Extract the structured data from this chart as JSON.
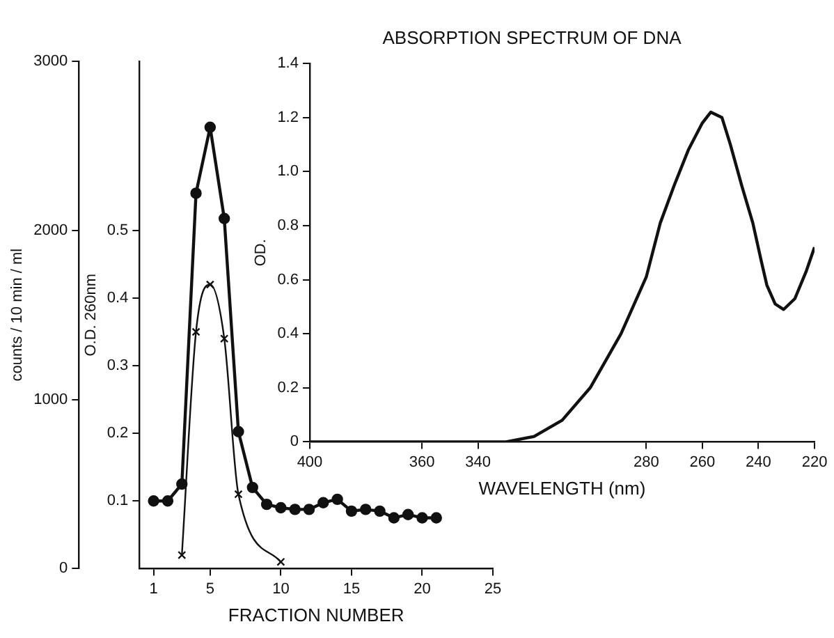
{
  "chart_data": [
    {
      "type": "line",
      "xlabel": "FRACTION NUMBER",
      "ylabel": "counts / 10 min / ml",
      "y2label": "O.D. 260nm",
      "xlim": [
        0,
        25
      ],
      "xticks": [
        1,
        5,
        10,
        15,
        20,
        25
      ],
      "ylim": [
        0,
        3000
      ],
      "yticks": [
        0,
        1000,
        2000,
        3000
      ],
      "y2lim": [
        0,
        0.75
      ],
      "y2ticks": [
        0.1,
        0.2,
        0.3,
        0.4,
        0.5
      ],
      "grid": false,
      "legend": false,
      "series": [
        {
          "color": "#111111",
          "marker": "circle",
          "x": [
            1,
            2,
            3,
            4,
            5,
            6,
            7,
            8,
            9,
            10,
            11,
            12,
            13,
            14,
            15,
            16,
            17,
            18,
            19,
            20,
            21
          ],
          "values": [
            400,
            400,
            500,
            2220,
            2610,
            2070,
            810,
            480,
            380,
            360,
            350,
            350,
            390,
            410,
            340,
            350,
            340,
            300,
            320,
            300,
            300
          ]
        },
        {
          "color": "#111111",
          "marker": "cross",
          "axis": "y2",
          "x": [
            3,
            4,
            5,
            6,
            7,
            10
          ],
          "values": [
            0.02,
            0.35,
            0.42,
            0.34,
            0.11,
            0.01
          ]
        }
      ]
    },
    {
      "type": "line",
      "title": "ABSORPTION SPECTRUM OF DNA",
      "xlabel": "WAVELENGTH (nm)",
      "ylabel": "OD.",
      "xlim": [
        400,
        220
      ],
      "xticks": [
        400,
        360,
        340,
        280,
        260,
        240,
        220
      ],
      "ylim": [
        0,
        1.4
      ],
      "yticks": [
        0,
        0.2,
        0.4,
        0.6,
        0.8,
        {
          "value": 1,
          "label": "1.0"
        },
        1.2,
        1.4
      ],
      "grid": false,
      "legend": false,
      "series": [
        {
          "color": "#111111",
          "marker": "none",
          "x": [
            400,
            360,
            340,
            330,
            320,
            310,
            300,
            289,
            280,
            275,
            270,
            265,
            260,
            257,
            253,
            250,
            246,
            242,
            239,
            237,
            234,
            231,
            227,
            223,
            220
          ],
          "values": [
            0,
            0,
            0,
            0,
            0.02,
            0.08,
            0.2,
            0.4,
            0.61,
            0.81,
            0.95,
            1.08,
            1.18,
            1.22,
            1.2,
            1.1,
            0.95,
            0.81,
            0.67,
            0.58,
            0.51,
            0.49,
            0.53,
            0.63,
            0.72
          ]
        }
      ]
    }
  ]
}
